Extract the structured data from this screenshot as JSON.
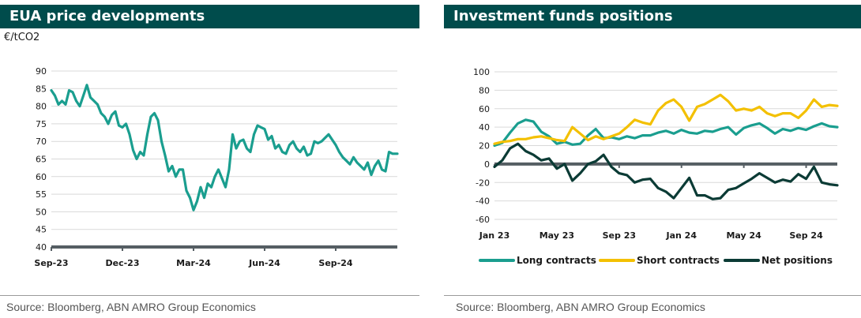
{
  "left": {
    "title": "EUA price developments",
    "unit": "€/tCO2",
    "source": "Source: Bloomberg, ABN AMRO Group Economics"
  },
  "right": {
    "title": "Investment funds positions",
    "source": "Source: Bloomberg, ABN AMRO Group Economics"
  },
  "colors": {
    "teal": "#1a9e8f",
    "gold": "#f3c000",
    "dark": "#0b3b35",
    "grid": "#d9d9d9",
    "axis": "#555e63",
    "title_bg": "#004c4c"
  },
  "chart_data": [
    {
      "type": "line",
      "title": "EUA price developments",
      "ylabel": "€/tCO2",
      "ylim": [
        40,
        90
      ],
      "yticks": [
        40,
        45,
        50,
        55,
        60,
        65,
        70,
        75,
        80,
        85,
        90
      ],
      "x_ticks": [
        "Sep-23",
        "Dec-23",
        "Mar-24",
        "Jun-24",
        "Sep-24"
      ],
      "x_tick_pos": [
        0,
        3,
        6,
        9,
        12
      ],
      "x_range": [
        0,
        14.6
      ],
      "grid": true,
      "series": [
        {
          "color": "teal",
          "x": [
            0,
            0.15,
            0.3,
            0.45,
            0.6,
            0.75,
            0.9,
            1.05,
            1.2,
            1.35,
            1.5,
            1.65,
            1.8,
            1.95,
            2.1,
            2.25,
            2.4,
            2.55,
            2.7,
            2.85,
            3.0,
            3.15,
            3.3,
            3.45,
            3.6,
            3.75,
            3.9,
            4.05,
            4.2,
            4.35,
            4.5,
            4.65,
            4.8,
            4.95,
            5.1,
            5.25,
            5.4,
            5.55,
            5.7,
            5.85,
            6.0,
            6.15,
            6.3,
            6.45,
            6.6,
            6.75,
            6.9,
            7.05,
            7.2,
            7.35,
            7.5,
            7.65,
            7.8,
            7.95,
            8.1,
            8.25,
            8.4,
            8.55,
            8.7,
            8.85,
            9.0,
            9.15,
            9.3,
            9.45,
            9.6,
            9.75,
            9.9,
            10.05,
            10.2,
            10.35,
            10.5,
            10.65,
            10.8,
            10.95,
            11.1,
            11.25,
            11.4,
            11.55,
            11.7,
            11.85,
            12.0,
            12.15,
            12.3,
            12.45,
            12.6,
            12.75,
            12.9,
            13.05,
            13.2,
            13.35,
            13.5,
            13.65,
            13.8,
            13.95,
            14.1,
            14.25,
            14.4,
            14.6
          ],
          "values": [
            84.5,
            83,
            80.5,
            81.5,
            80.5,
            84.5,
            84,
            81.5,
            80,
            83,
            86,
            82.5,
            81.5,
            80.5,
            78,
            77,
            75,
            77.5,
            78.5,
            74.5,
            74,
            75,
            72,
            67.5,
            65,
            67,
            66,
            72,
            77,
            78,
            76,
            70,
            66,
            61.5,
            63,
            60,
            62,
            62,
            56,
            54,
            50.5,
            53,
            57,
            54,
            58,
            57,
            60,
            62,
            59.5,
            57,
            62,
            72,
            68,
            70,
            70.5,
            68,
            67,
            72,
            74.5,
            74,
            73.5,
            70.5,
            71.5,
            68,
            69,
            67,
            66.5,
            69,
            70,
            68,
            67,
            68.5,
            66,
            66.5,
            70,
            69.5,
            70,
            71,
            72,
            70.5,
            69,
            67,
            65.5,
            64.5,
            63.5,
            65.5,
            64,
            63,
            62,
            64,
            60.5,
            63,
            64.5,
            62,
            61.5,
            67,
            66.5,
            66.5
          ]
        }
      ]
    },
    {
      "type": "line",
      "title": "Investment funds positions",
      "ylim": [
        -60,
        100
      ],
      "yticks": [
        -60,
        -40,
        -20,
        0,
        20,
        40,
        60,
        80,
        100
      ],
      "x_ticks": [
        "Jan 23",
        "May 23",
        "Sep 23",
        "Jan 24",
        "May 24",
        "Sep 24"
      ],
      "x_tick_pos": [
        0,
        4,
        8,
        12,
        16,
        20
      ],
      "x_range": [
        0,
        22
      ],
      "grid": true,
      "legend": "bottom",
      "series": [
        {
          "name": "Long contracts",
          "color": "teal",
          "x": [
            0,
            0.5,
            1.0,
            1.5,
            2.0,
            2.5,
            3.0,
            3.5,
            4.0,
            4.5,
            5.0,
            5.5,
            6.0,
            6.5,
            7.0,
            7.5,
            8.0,
            8.5,
            9.0,
            9.5,
            10.0,
            10.5,
            11.0,
            11.5,
            12.0,
            12.5,
            13.0,
            13.5,
            14.0,
            14.5,
            15.0,
            15.5,
            16.0,
            16.5,
            17.0,
            17.5,
            18.0,
            18.5,
            19.0,
            19.5,
            20.0,
            20.5,
            21.0,
            21.5,
            22.0
          ],
          "values": [
            20,
            23,
            34,
            44,
            48,
            46,
            35,
            30,
            22,
            24,
            21,
            22,
            31,
            38,
            28,
            29,
            27,
            30,
            28,
            31,
            31,
            34,
            36,
            33,
            37,
            34,
            33,
            36,
            35,
            38,
            40,
            32,
            39,
            42,
            44,
            39,
            33,
            38,
            36,
            39,
            37,
            41,
            44,
            41,
            40
          ]
        },
        {
          "name": "Short contracts",
          "color": "gold",
          "x": [
            0,
            0.5,
            1.0,
            1.5,
            2.0,
            2.5,
            3.0,
            3.5,
            4.0,
            4.5,
            5.0,
            5.5,
            6.0,
            6.5,
            7.0,
            7.5,
            8.0,
            8.5,
            9.0,
            9.5,
            10.0,
            10.5,
            11.0,
            11.5,
            12.0,
            12.5,
            13.0,
            13.5,
            14.0,
            14.5,
            15.0,
            15.5,
            16.0,
            16.5,
            17.0,
            17.5,
            18.0,
            18.5,
            19.0,
            19.5,
            20.0,
            20.5,
            21.0,
            21.5,
            22.0
          ],
          "values": [
            22,
            24,
            25,
            27,
            27,
            29,
            30,
            28,
            26,
            25,
            40,
            33,
            26,
            30,
            27,
            30,
            33,
            40,
            48,
            45,
            43,
            58,
            66,
            70,
            62,
            47,
            62,
            65,
            70,
            75,
            68,
            58,
            60,
            58,
            62,
            55,
            52,
            55,
            55,
            50,
            58,
            70,
            62,
            64,
            63
          ]
        },
        {
          "name": "Net positions",
          "color": "dark",
          "x": [
            0,
            0.5,
            1.0,
            1.5,
            2.0,
            2.5,
            3.0,
            3.5,
            4.0,
            4.5,
            5.0,
            5.5,
            6.0,
            6.5,
            7.0,
            7.5,
            8.0,
            8.5,
            9.0,
            9.5,
            10.0,
            10.5,
            11.0,
            11.5,
            12.0,
            12.5,
            13.0,
            13.5,
            14.0,
            14.5,
            15.0,
            15.5,
            16.0,
            16.5,
            17.0,
            17.5,
            18.0,
            18.5,
            19.0,
            19.5,
            20.0,
            20.5,
            21.0,
            21.5,
            22.0
          ],
          "values": [
            -3,
            4,
            17,
            22,
            14,
            10,
            4,
            6,
            -5,
            0,
            -18,
            -10,
            0,
            3,
            10,
            -3,
            -10,
            -12,
            -20,
            -17,
            -16,
            -26,
            -30,
            -37,
            -26,
            -15,
            -34,
            -34,
            -38,
            -37,
            -28,
            -26,
            -21,
            -16,
            -10,
            -15,
            -20,
            -17,
            -19,
            -11,
            -16,
            -3,
            -20,
            -22,
            -23
          ]
        }
      ]
    }
  ]
}
